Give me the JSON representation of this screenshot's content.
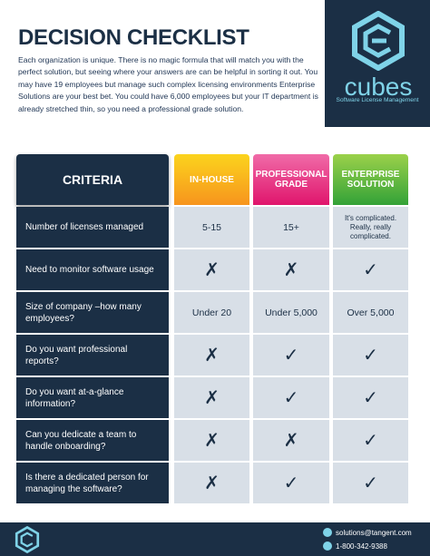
{
  "header": {
    "title": "DECISION CHECKLIST",
    "intro": "Each organization is unique. There is no magic formula that will match you with the perfect solution, but seeing where your answers are can be helpful in sorting it out. You may have 19 employees but manage such complex licensing environments Enterprise Solutions are your best bet. You could have 6,000 employees but your IT department is already stretched thin, so you need a professional grade solution."
  },
  "brand": {
    "name": "cubes",
    "tagline": "Software License Management"
  },
  "table": {
    "columns": [
      "CRITERIA",
      "IN-HOUSE",
      "PROFESSIONAL GRADE",
      "ENTERPRISE SOLUTION"
    ],
    "rows": [
      [
        "Number of licenses managed",
        "5-15",
        "15+",
        "It's complicated. Really, really complicated."
      ],
      [
        "Need to monitor software usage",
        "✗",
        "✗",
        "✓"
      ],
      [
        "Size of company –how many employees?",
        "Under 20",
        "Under 5,000",
        "Over 5,000"
      ],
      [
        "Do you want professional reports?",
        "✗",
        "✓",
        "✓"
      ],
      [
        "Do you want at-a-glance information?",
        "✗",
        "✓",
        "✓"
      ],
      [
        "Can you dedicate a team to handle onboarding?",
        "✗",
        "✗",
        "✓"
      ],
      [
        "Is there a dedicated person for managing the software?",
        "✗",
        "✓",
        "✓"
      ]
    ]
  },
  "footer": {
    "email": "solutions@tangent.com",
    "phone": "1-800-342-9388"
  }
}
